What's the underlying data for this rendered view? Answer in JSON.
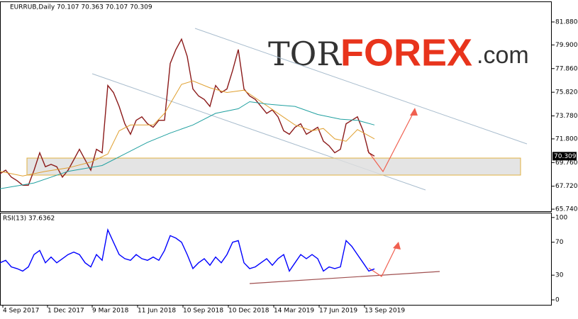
{
  "chart_data": [
    {
      "type": "line",
      "title": "EURRUB,Daily  70.107 70.363 70.107 70.309",
      "xlim": [
        0,
        778
      ],
      "ylim": [
        65.56,
        83.59
      ],
      "yticks": [
        {
          "value": 81.88,
          "label": "81.880"
        },
        {
          "value": 79.9,
          "label": "79.900"
        },
        {
          "value": 77.86,
          "label": "77.860"
        },
        {
          "value": 75.82,
          "label": "75.820"
        },
        {
          "value": 73.78,
          "label": "73.780"
        },
        {
          "value": 71.8,
          "label": "71.800"
        },
        {
          "value": 69.76,
          "label": "69.760"
        },
        {
          "value": 67.72,
          "label": "67.720"
        },
        {
          "value": 65.74,
          "label": "65.740"
        }
      ],
      "current_price": {
        "value": 70.309,
        "label": "70.309"
      },
      "series": [
        {
          "color": "#8b1a1a",
          "x": [
            0,
            8,
            16,
            24,
            32,
            40,
            48,
            56,
            64,
            72,
            80,
            88,
            96,
            104,
            112,
            120,
            128,
            136,
            144,
            152,
            160,
            168,
            176,
            184,
            192,
            200,
            208,
            216,
            224,
            232,
            240,
            248,
            256,
            264,
            272,
            280,
            288,
            296,
            304,
            312,
            320,
            328,
            336,
            344,
            352,
            360,
            368,
            376,
            384,
            392,
            400,
            408,
            416,
            424,
            432,
            440,
            448,
            456,
            464,
            472,
            480,
            488,
            496,
            504,
            512,
            520,
            528
          ],
          "values": [
            68.8,
            69.1,
            68.5,
            68.2,
            67.8,
            67.8,
            69.1,
            70.6,
            69.4,
            69.6,
            69.4,
            68.5,
            69.1,
            70.0,
            70.9,
            70.0,
            69.1,
            70.9,
            70.6,
            76.4,
            75.8,
            74.6,
            73.1,
            72.2,
            73.4,
            73.7,
            73.1,
            72.8,
            73.4,
            73.4,
            78.3,
            79.5,
            80.4,
            78.9,
            76.1,
            75.5,
            75.2,
            74.6,
            76.4,
            75.8,
            76.1,
            77.7,
            79.5,
            76.1,
            75.5,
            75.2,
            74.6,
            74.0,
            74.3,
            73.7,
            72.5,
            72.2,
            72.8,
            73.1,
            72.2,
            72.5,
            72.8,
            71.6,
            71.2,
            70.6,
            70.9,
            73.1,
            73.4,
            73.7,
            72.5,
            70.6,
            70.309
          ]
        },
        {
          "color": "#e0a030",
          "x": [
            0,
            32,
            64,
            96,
            128,
            152,
            168,
            184,
            216,
            232,
            256,
            272,
            296,
            320,
            344,
            368,
            392,
            416,
            440,
            456,
            472,
            488,
            504,
            528
          ],
          "values": [
            69.0,
            68.6,
            69.0,
            69.3,
            69.8,
            70.5,
            72.5,
            73.0,
            73.0,
            74.0,
            76.5,
            76.8,
            76.2,
            75.8,
            76.0,
            75.0,
            74.0,
            73.0,
            72.5,
            72.7,
            71.8,
            71.6,
            72.6,
            71.8
          ]
        },
        {
          "color": "#20a0a0",
          "x": [
            0,
            48,
            96,
            144,
            176,
            208,
            240,
            272,
            304,
            336,
            352,
            376,
            416,
            448,
            480,
            504,
            528
          ],
          "values": [
            67.5,
            68.0,
            69.0,
            69.5,
            70.5,
            71.5,
            72.3,
            73.0,
            74.0,
            74.4,
            75.0,
            74.8,
            74.6,
            73.9,
            73.5,
            73.4,
            73.0
          ]
        }
      ]
    },
    {
      "type": "line",
      "title": "RSI(13) 37.6362",
      "xlim": [
        0,
        778
      ],
      "ylim": [
        -6,
        105
      ],
      "yticks": [
        100,
        70,
        30,
        0
      ],
      "xticks": [
        {
          "value": 4,
          "label": "4 Sep 2017"
        },
        {
          "value": 67,
          "label": "1 Dec 2017"
        },
        {
          "value": 130,
          "label": "9 Mar 2018"
        },
        {
          "value": 194,
          "label": "11 Jun 2018"
        },
        {
          "value": 258,
          "label": "10 Sep 2018"
        },
        {
          "value": 322,
          "label": "10 Dec 2018"
        },
        {
          "value": 386,
          "label": "14 Mar 2019"
        },
        {
          "value": 450,
          "label": "17 Jun 2019"
        },
        {
          "value": 514,
          "label": "13 Sep 2019"
        }
      ],
      "series": [
        {
          "color": "#0000ff",
          "x": [
            0,
            8,
            16,
            24,
            32,
            40,
            48,
            56,
            64,
            72,
            80,
            88,
            96,
            104,
            112,
            120,
            128,
            136,
            144,
            152,
            160,
            168,
            176,
            184,
            192,
            200,
            208,
            216,
            224,
            232,
            240,
            248,
            256,
            264,
            272,
            280,
            288,
            296,
            304,
            312,
            320,
            328,
            336,
            344,
            352,
            360,
            368,
            376,
            384,
            392,
            400,
            408,
            416,
            424,
            432,
            440,
            448,
            456,
            464,
            472,
            480,
            488,
            496,
            504,
            512,
            520,
            528
          ],
          "values": [
            45,
            48,
            40,
            38,
            35,
            40,
            55,
            60,
            45,
            52,
            45,
            50,
            55,
            58,
            55,
            45,
            40,
            55,
            48,
            85,
            70,
            55,
            50,
            48,
            55,
            50,
            48,
            52,
            48,
            60,
            78,
            75,
            70,
            55,
            38,
            45,
            50,
            42,
            52,
            45,
            55,
            70,
            72,
            45,
            38,
            40,
            45,
            50,
            42,
            50,
            55,
            35,
            45,
            55,
            50,
            55,
            50,
            35,
            40,
            38,
            40,
            72,
            65,
            55,
            45,
            35,
            37.6362
          ]
        }
      ]
    }
  ],
  "watermark": [
    "TOR",
    "FOREX",
    ".com"
  ]
}
